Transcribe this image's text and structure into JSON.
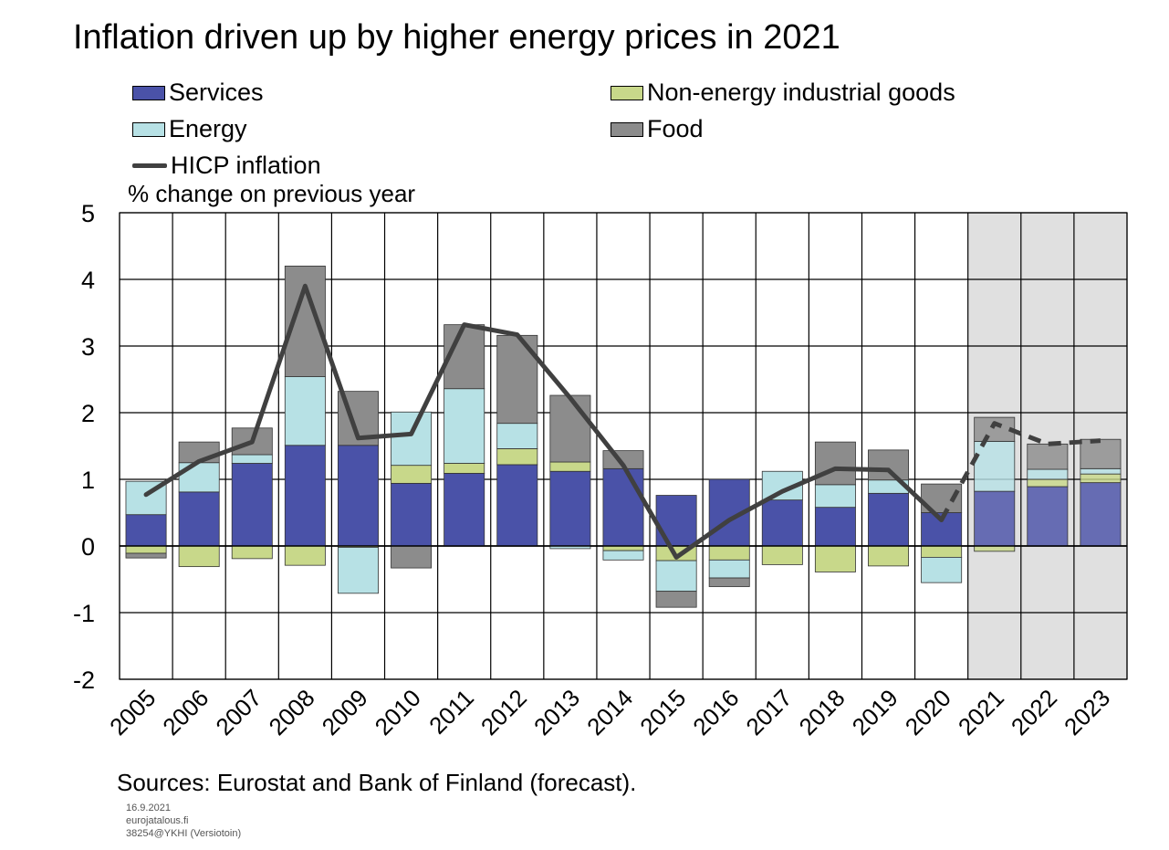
{
  "title": "Inflation driven up by higher energy prices in 2021",
  "legend": {
    "services": "Services",
    "nonenergy": "Non-energy industrial goods",
    "energy": "Energy",
    "food": "Food",
    "hicp": "HICP inflation"
  },
  "unit_label": "% change on previous year",
  "sources": "Sources: Eurostat and Bank of Finland (forecast).",
  "footer": {
    "date": "16.9.2021",
    "site": "eurojatalous.fi",
    "code": "38254@YKHI (Versiotoin)"
  },
  "colors": {
    "services": "#4a52a8",
    "nonenergy": "#c8d88a",
    "energy": "#b7e1e5",
    "food": "#8c8c8c",
    "hicp": "#404040",
    "forecast_shade": "#e0e0e0"
  },
  "chart_data": {
    "type": "bar",
    "stacked": true,
    "categories": [
      "2005",
      "2006",
      "2007",
      "2008",
      "2009",
      "2010",
      "2011",
      "2012",
      "2013",
      "2014",
      "2015",
      "2016",
      "2017",
      "2018",
      "2019",
      "2020",
      "2021",
      "2022",
      "2023"
    ],
    "forecast_from": "2021",
    "ylim": [
      -2,
      5
    ],
    "yticks": [
      -2,
      -1,
      0,
      1,
      2,
      3,
      4,
      5
    ],
    "grid": true,
    "series": [
      {
        "name": "Services",
        "key": "services",
        "values": [
          0.47,
          0.81,
          1.24,
          1.51,
          1.51,
          0.94,
          1.09,
          1.22,
          1.12,
          1.16,
          0.76,
          1.0,
          0.69,
          0.58,
          0.79,
          0.5,
          0.82,
          0.89,
          0.95
        ]
      },
      {
        "name": "Non-energy industrial goods",
        "key": "nonenergy",
        "values": [
          -0.11,
          -0.31,
          -0.19,
          -0.29,
          -0.02,
          0.27,
          0.15,
          0.24,
          0.14,
          -0.07,
          -0.22,
          -0.21,
          -0.28,
          -0.39,
          -0.3,
          -0.17,
          -0.08,
          0.11,
          0.13
        ]
      },
      {
        "name": "Energy",
        "key": "energy",
        "values": [
          0.5,
          0.44,
          0.13,
          1.03,
          -0.69,
          0.8,
          1.12,
          0.38,
          -0.04,
          -0.14,
          -0.46,
          -0.27,
          0.43,
          0.34,
          0.2,
          -0.38,
          0.75,
          0.15,
          0.08
        ]
      },
      {
        "name": "Food",
        "key": "food",
        "values": [
          -0.07,
          0.31,
          0.4,
          1.66,
          0.81,
          -0.33,
          0.96,
          1.32,
          1.0,
          0.27,
          -0.24,
          -0.13,
          0.0,
          0.64,
          0.45,
          0.43,
          0.36,
          0.38,
          0.44
        ]
      }
    ],
    "line": {
      "name": "HICP inflation",
      "key": "hicp",
      "values": [
        0.77,
        1.27,
        1.56,
        3.9,
        1.62,
        1.68,
        3.32,
        3.17,
        2.22,
        1.21,
        -0.17,
        0.39,
        0.82,
        1.16,
        1.14,
        0.39,
        1.84,
        1.53,
        1.58
      ],
      "dashed_from": "2020"
    },
    "ylabel": "% change on previous year"
  }
}
